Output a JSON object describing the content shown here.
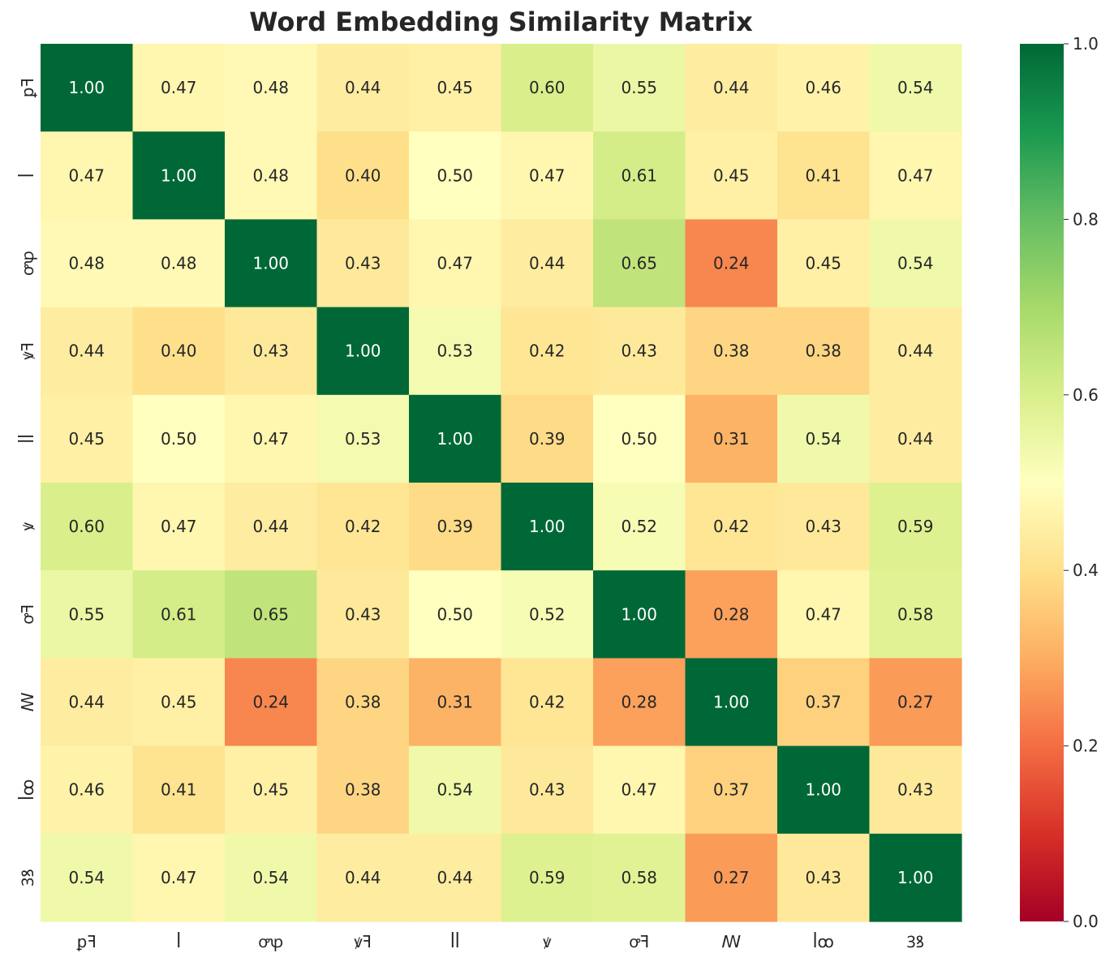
{
  "chart_data": {
    "type": "heatmap",
    "title": "Word Embedding Similarity Matrix",
    "xlabel": "",
    "ylabel": "",
    "row_labels": [
      "ꝑꟻ",
      "ꟾ",
      "ꝍꝕ",
      "ꝟꟻ",
      "ꟾꟾ",
      "ꝟ",
      "ꝍꟻ",
      "ꟿ",
      "ꟾꝏ",
      "Ꝫꝸ"
    ],
    "col_labels": [
      "ꝑꟻ",
      "ꟾ",
      "ꝍꝕ",
      "ꝟꟻ",
      "ꟾꟾ",
      "ꝟ",
      "ꝍꟻ",
      "ꟿ",
      "ꟾꝏ",
      "Ꝫꝸ"
    ],
    "values": [
      [
        1.0,
        0.47,
        0.48,
        0.44,
        0.45,
        0.6,
        0.55,
        0.44,
        0.46,
        0.54
      ],
      [
        0.47,
        1.0,
        0.48,
        0.4,
        0.5,
        0.47,
        0.61,
        0.45,
        0.41,
        0.47
      ],
      [
        0.48,
        0.48,
        1.0,
        0.43,
        0.47,
        0.44,
        0.65,
        0.24,
        0.45,
        0.54
      ],
      [
        0.44,
        0.4,
        0.43,
        1.0,
        0.53,
        0.42,
        0.43,
        0.38,
        0.38,
        0.44
      ],
      [
        0.45,
        0.5,
        0.47,
        0.53,
        1.0,
        0.39,
        0.5,
        0.31,
        0.54,
        0.44
      ],
      [
        0.6,
        0.47,
        0.44,
        0.42,
        0.39,
        1.0,
        0.52,
        0.42,
        0.43,
        0.59
      ],
      [
        0.55,
        0.61,
        0.65,
        0.43,
        0.5,
        0.52,
        1.0,
        0.28,
        0.47,
        0.58
      ],
      [
        0.44,
        0.45,
        0.24,
        0.38,
        0.31,
        0.42,
        0.28,
        1.0,
        0.37,
        0.27
      ],
      [
        0.46,
        0.41,
        0.45,
        0.38,
        0.54,
        0.43,
        0.47,
        0.37,
        1.0,
        0.43
      ],
      [
        0.54,
        0.47,
        0.54,
        0.44,
        0.44,
        0.59,
        0.58,
        0.27,
        0.43,
        1.0
      ]
    ],
    "value_format": "0.00",
    "colormap": "RdYlGn",
    "colormap_stops": [
      "#a50026",
      "#d73027",
      "#f46d43",
      "#fdae61",
      "#fee08b",
      "#ffffbf",
      "#d9ef8b",
      "#a6d96a",
      "#66bd63",
      "#1a9850",
      "#006837"
    ],
    "vmin": 0.0,
    "vmax": 1.0,
    "colorbar_ticks": [
      "0.0",
      "0.2",
      "0.4",
      "0.6",
      "0.8",
      "1.0"
    ],
    "grid": false
  }
}
